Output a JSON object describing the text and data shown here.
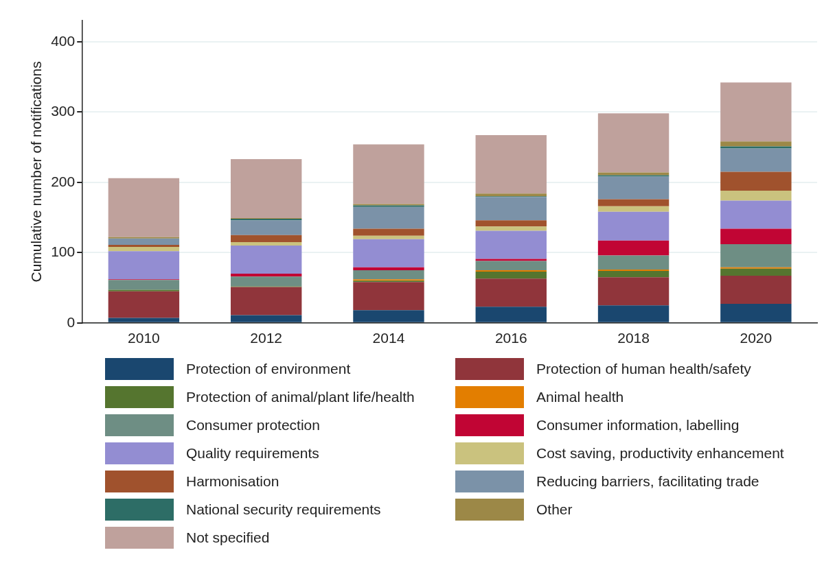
{
  "chart_data": {
    "type": "bar",
    "stacked": true,
    "ylabel": "Cumulative number of notifications",
    "categories": [
      "2010",
      "2012",
      "2014",
      "2016",
      "2018",
      "2020"
    ],
    "ylim": [
      0,
      430
    ],
    "yticks": [
      0,
      100,
      200,
      300,
      400
    ],
    "grid": "y",
    "legend": "bottom",
    "series": [
      {
        "name": "Protection of environment",
        "color": "#1a476f",
        "values": [
          7,
          11,
          18,
          23,
          25,
          27
        ]
      },
      {
        "name": "Protection of human health/safety",
        "color": "#90353b",
        "values": [
          38,
          40,
          40,
          40,
          40,
          40
        ]
      },
      {
        "name": "Protection of animal/plant life/health",
        "color": "#55752f",
        "values": [
          2,
          1,
          2,
          10,
          9,
          10
        ]
      },
      {
        "name": "Animal health",
        "color": "#e37e00",
        "values": [
          0,
          0,
          2,
          2,
          2,
          2
        ]
      },
      {
        "name": "Consumer protection",
        "color": "#6e8e84",
        "values": [
          14,
          14,
          13,
          13,
          20,
          33
        ]
      },
      {
        "name": "Consumer information, labelling",
        "color": "#c10534",
        "values": [
          1,
          4,
          4,
          3,
          21,
          22
        ]
      },
      {
        "name": "Quality requirements",
        "color": "#938dd2",
        "values": [
          40,
          40,
          40,
          40,
          41,
          40
        ]
      },
      {
        "name": "Cost saving, productivity enhancement",
        "color": "#cac27e",
        "values": [
          6,
          5,
          5,
          6,
          8,
          14
        ]
      },
      {
        "name": "Harmonisation",
        "color": "#a0522d",
        "values": [
          3,
          10,
          10,
          9,
          10,
          27
        ]
      },
      {
        "name": "Reducing barriers, facilitating trade",
        "color": "#7b92a8",
        "values": [
          9,
          21,
          31,
          33,
          32,
          33
        ]
      },
      {
        "name": "National security requirements",
        "color": "#2d6d66",
        "values": [
          0,
          2,
          2,
          1,
          2,
          3
        ]
      },
      {
        "name": "Other",
        "color": "#9c8847",
        "values": [
          2,
          1,
          2,
          4,
          4,
          7
        ]
      },
      {
        "name": "Not specified",
        "color": "#bfa19c",
        "values": [
          84,
          84,
          85,
          83,
          84,
          84
        ]
      }
    ]
  }
}
